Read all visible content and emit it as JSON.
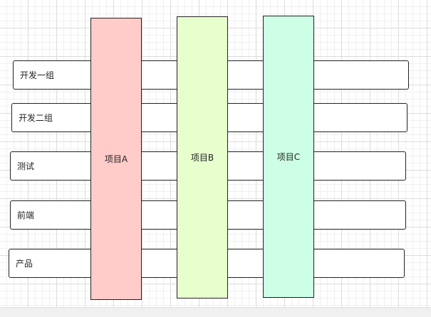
{
  "rows": [
    {
      "label": "开发一组"
    },
    {
      "label": "开发二组"
    },
    {
      "label": "测试"
    },
    {
      "label": "前端"
    },
    {
      "label": "产品"
    }
  ],
  "columns": [
    {
      "label": "项目A",
      "fill": "#ffccc9"
    },
    {
      "label": "项目B",
      "fill": "#e6ffcc"
    },
    {
      "label": "项目C",
      "fill": "#ccffe6"
    }
  ]
}
